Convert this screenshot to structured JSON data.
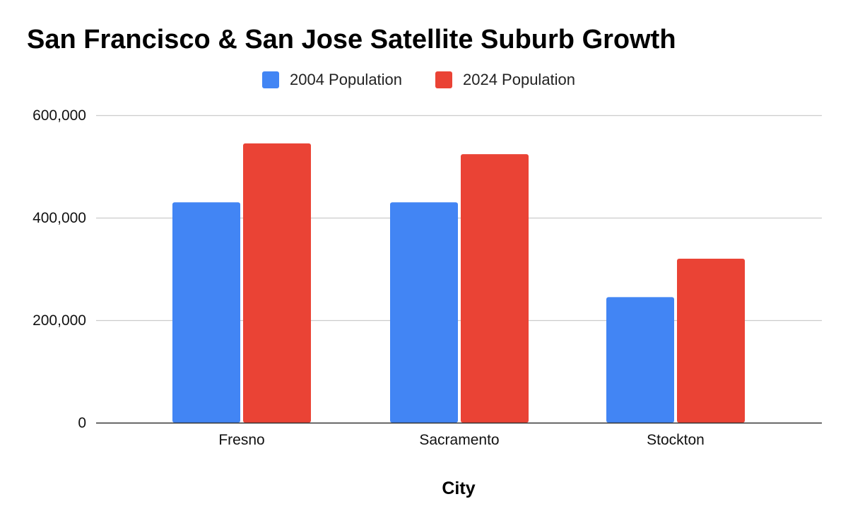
{
  "chart_data": {
    "type": "bar",
    "title": "San Francisco & San Jose Satellite Suburb Growth",
    "xlabel": "City",
    "ylabel": "",
    "categories": [
      "Fresno",
      "Sacramento",
      "Stockton"
    ],
    "series": [
      {
        "name": "2004 Population",
        "color": "#4285f4",
        "values": [
          430000,
          430000,
          245000
        ]
      },
      {
        "name": "2024 Population",
        "color": "#ea4335",
        "values": [
          545000,
          524000,
          320000
        ]
      }
    ],
    "ylim": [
      0,
      600000
    ],
    "yticks": [
      0,
      200000,
      400000,
      600000
    ],
    "ytick_labels": [
      "0",
      "200,000",
      "400,000",
      "600,000"
    ],
    "grid": true,
    "legend_position": "top-center"
  }
}
